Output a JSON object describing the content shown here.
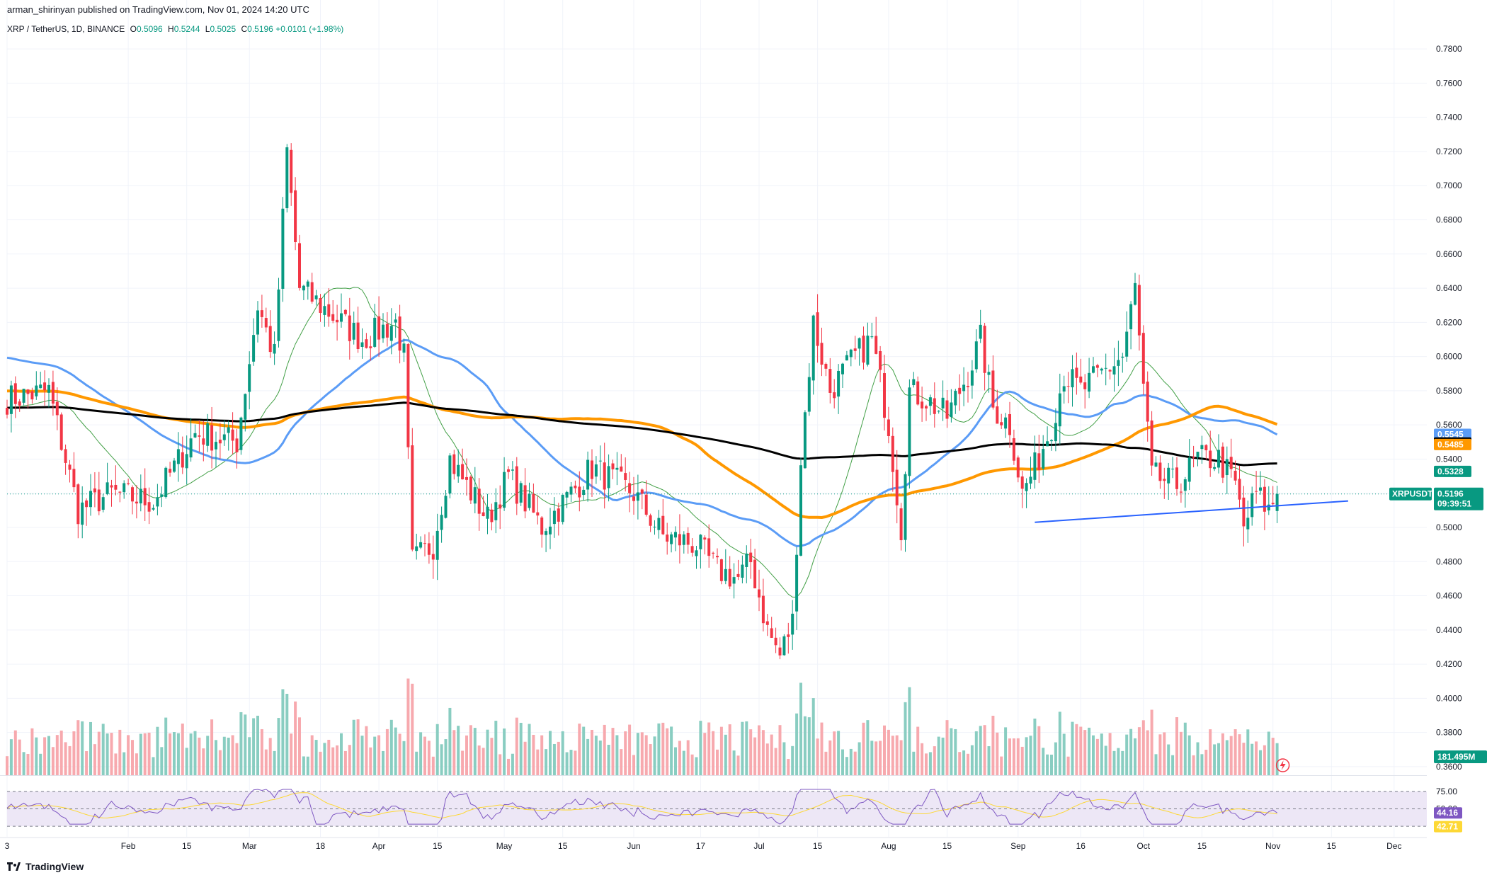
{
  "header": {
    "publisher": "arman_shirinyan published on TradingView.com, Nov 01, 2024 14:20 UTC"
  },
  "symbol": {
    "name": "XRP / TetherUS, 1D, BINANCE",
    "open_label": "O",
    "open": "0.5096",
    "high_label": "H",
    "high": "0.5244",
    "low_label": "L",
    "low": "0.5025",
    "close_label": "C",
    "close": "0.5196",
    "change": "+0.0101 (+1.98%)"
  },
  "brand": "TradingView",
  "colors": {
    "up": "#089981",
    "down": "#f23645",
    "up_vol": "#89cdc1",
    "down_vol": "#f7a9ae",
    "ma_blue": "#5b9cf6",
    "ma_orange": "#ff9800",
    "ma_black": "#000000",
    "ma_green": "#43a047",
    "trendline": "#2962ff",
    "rsi_line": "#7e57c2",
    "rsi_ma": "#fdd835",
    "rsi_band": "#ede7f6"
  },
  "chart_data": {
    "type": "candlestick",
    "title": "XRP / TetherUS, 1D, BINANCE",
    "ylim": [
      0.355,
      0.79
    ],
    "y_ticks": [
      "0.7800",
      "0.7600",
      "0.7400",
      "0.7200",
      "0.7000",
      "0.6800",
      "0.6600",
      "0.6400",
      "0.6200",
      "0.6000",
      "0.5800",
      "0.5600",
      "0.5400",
      "0.5200",
      "0.5000",
      "0.4800",
      "0.4600",
      "0.4400",
      "0.4200",
      "0.4000",
      "0.3800",
      "0.3600"
    ],
    "x_ticks": [
      {
        "label": "3",
        "day": 0
      },
      {
        "label": "Feb",
        "day": 29
      },
      {
        "label": "15",
        "day": 43
      },
      {
        "label": "Mar",
        "day": 58
      },
      {
        "label": "18",
        "day": 75
      },
      {
        "label": "Apr",
        "day": 89
      },
      {
        "label": "15",
        "day": 103
      },
      {
        "label": "May",
        "day": 119
      },
      {
        "label": "15",
        "day": 133
      },
      {
        "label": "Jun",
        "day": 150
      },
      {
        "label": "17",
        "day": 166
      },
      {
        "label": "Jul",
        "day": 180
      },
      {
        "label": "15",
        "day": 194
      },
      {
        "label": "Aug",
        "day": 211
      },
      {
        "label": "15",
        "day": 225
      },
      {
        "label": "Sep",
        "day": 242
      },
      {
        "label": "16",
        "day": 257
      },
      {
        "label": "Oct",
        "day": 272
      },
      {
        "label": "15",
        "day": 286
      },
      {
        "label": "Nov",
        "day": 303
      },
      {
        "label": "15",
        "day": 317
      },
      {
        "label": "Dec",
        "day": 332
      }
    ],
    "key_points": [
      {
        "day": 0,
        "price": 0.575
      },
      {
        "day": 10,
        "price": 0.58
      },
      {
        "day": 17,
        "price": 0.51
      },
      {
        "day": 25,
        "price": 0.52
      },
      {
        "day": 35,
        "price": 0.515
      },
      {
        "day": 45,
        "price": 0.555
      },
      {
        "day": 55,
        "price": 0.55
      },
      {
        "day": 60,
        "price": 0.63
      },
      {
        "day": 64,
        "price": 0.6
      },
      {
        "day": 67,
        "price": 0.72
      },
      {
        "day": 70,
        "price": 0.64
      },
      {
        "day": 75,
        "price": 0.63
      },
      {
        "day": 85,
        "price": 0.61
      },
      {
        "day": 93,
        "price": 0.62
      },
      {
        "day": 95,
        "price": 0.6
      },
      {
        "day": 97,
        "price": 0.48
      },
      {
        "day": 102,
        "price": 0.49
      },
      {
        "day": 106,
        "price": 0.54
      },
      {
        "day": 115,
        "price": 0.505
      },
      {
        "day": 120,
        "price": 0.53
      },
      {
        "day": 128,
        "price": 0.5
      },
      {
        "day": 135,
        "price": 0.52
      },
      {
        "day": 140,
        "price": 0.535
      },
      {
        "day": 150,
        "price": 0.52
      },
      {
        "day": 157,
        "price": 0.495
      },
      {
        "day": 165,
        "price": 0.49
      },
      {
        "day": 170,
        "price": 0.475
      },
      {
        "day": 175,
        "price": 0.47
      },
      {
        "day": 178,
        "price": 0.48
      },
      {
        "day": 182,
        "price": 0.44
      },
      {
        "day": 185,
        "price": 0.425
      },
      {
        "day": 188,
        "price": 0.445
      },
      {
        "day": 190,
        "price": 0.54
      },
      {
        "day": 193,
        "price": 0.62
      },
      {
        "day": 197,
        "price": 0.58
      },
      {
        "day": 203,
        "price": 0.6
      },
      {
        "day": 207,
        "price": 0.61
      },
      {
        "day": 211,
        "price": 0.56
      },
      {
        "day": 214,
        "price": 0.5
      },
      {
        "day": 216,
        "price": 0.58
      },
      {
        "day": 220,
        "price": 0.575
      },
      {
        "day": 225,
        "price": 0.565
      },
      {
        "day": 230,
        "price": 0.59
      },
      {
        "day": 233,
        "price": 0.61
      },
      {
        "day": 236,
        "price": 0.57
      },
      {
        "day": 240,
        "price": 0.56
      },
      {
        "day": 243,
        "price": 0.52
      },
      {
        "day": 246,
        "price": 0.535
      },
      {
        "day": 250,
        "price": 0.56
      },
      {
        "day": 253,
        "price": 0.59
      },
      {
        "day": 257,
        "price": 0.58
      },
      {
        "day": 262,
        "price": 0.59
      },
      {
        "day": 267,
        "price": 0.6
      },
      {
        "day": 270,
        "price": 0.64
      },
      {
        "day": 272,
        "price": 0.58
      },
      {
        "day": 274,
        "price": 0.53
      },
      {
        "day": 280,
        "price": 0.525
      },
      {
        "day": 285,
        "price": 0.54
      },
      {
        "day": 290,
        "price": 0.54
      },
      {
        "day": 294,
        "price": 0.525
      },
      {
        "day": 296,
        "price": 0.5
      },
      {
        "day": 299,
        "price": 0.52
      },
      {
        "day": 302,
        "price": 0.51
      },
      {
        "day": 304,
        "price": 0.5196
      }
    ],
    "moving_averages": [
      {
        "color": "blue",
        "value": "0.5545"
      },
      {
        "color": "black",
        "value": "0.5494"
      },
      {
        "color": "orange",
        "value": "0.5485"
      },
      {
        "color": "green",
        "value": "0.5328"
      }
    ],
    "trendline": {
      "from": {
        "day": 246,
        "price": 0.503
      },
      "to": {
        "day": 321,
        "price": 0.5155
      }
    },
    "current_price": {
      "symbol": "XRPUSDT",
      "value": "0.5196",
      "countdown": "09:39:51"
    },
    "volume_label": "181.495M",
    "rsi": {
      "levels": [
        "75.00",
        "50.00",
        "25.00"
      ],
      "value": "44.16",
      "ma": "42.71"
    }
  }
}
